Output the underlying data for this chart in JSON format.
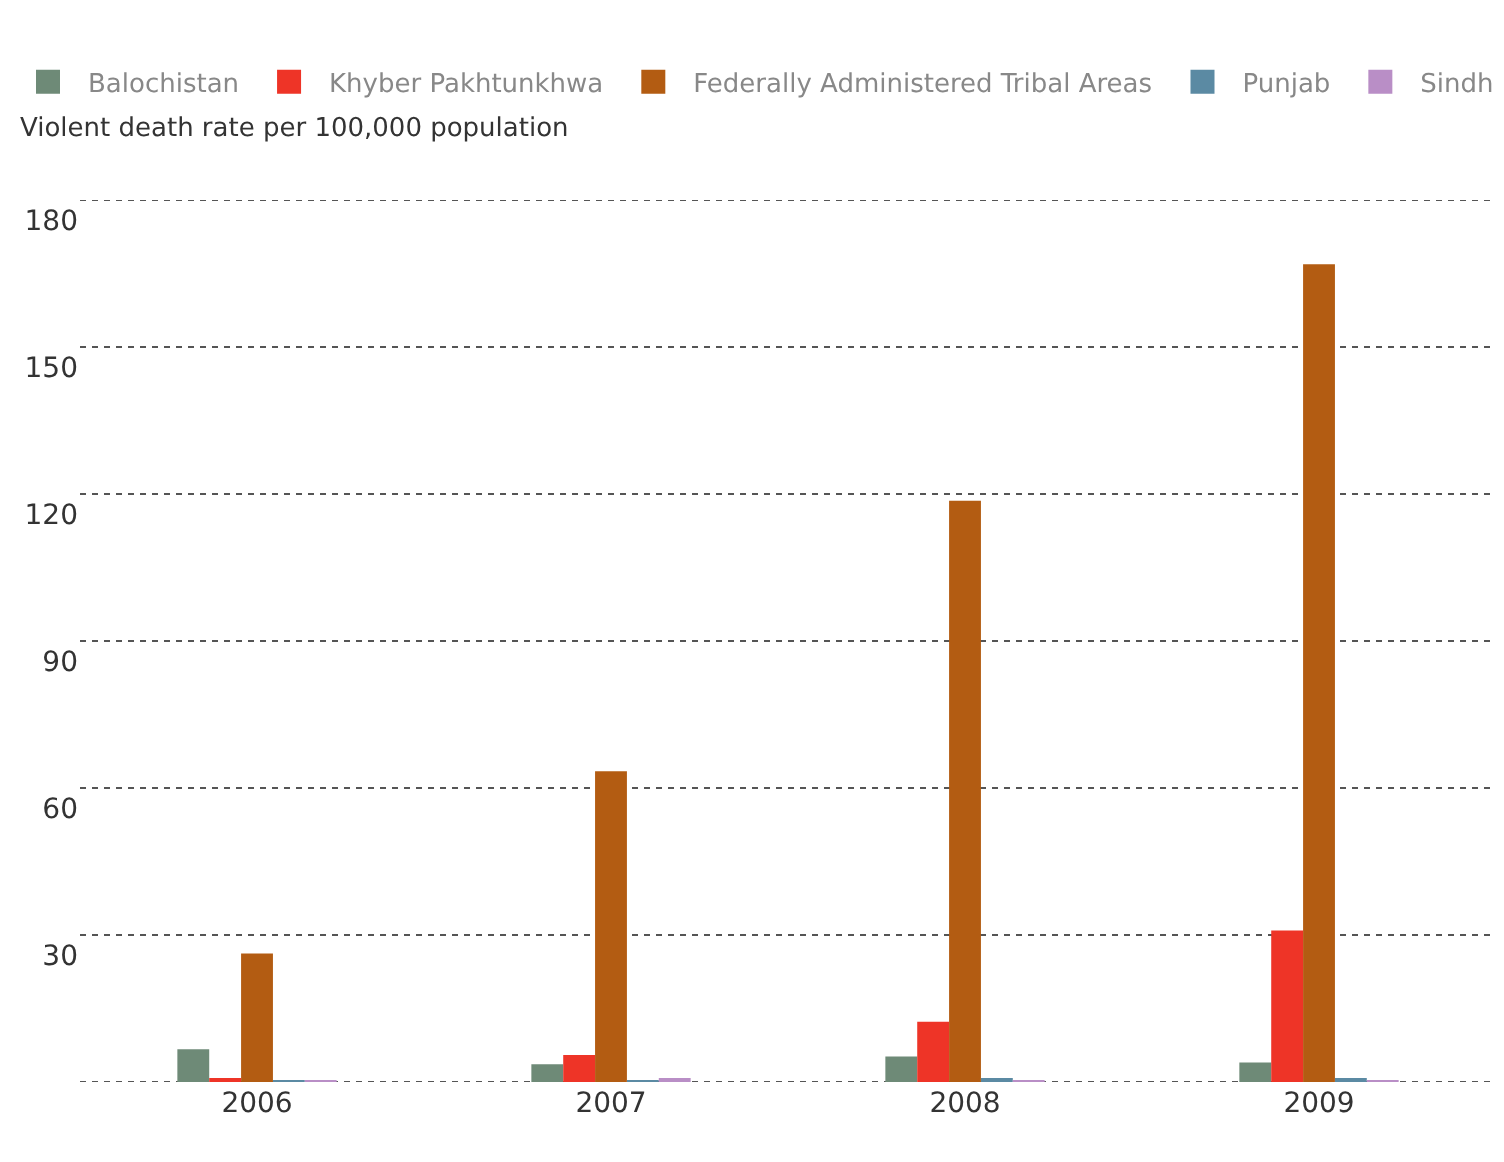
{
  "chart_data": {
    "type": "bar",
    "ylabel": "Violent death rate per 100,000 population",
    "categories": [
      "2006",
      "2007",
      "2008",
      "2009"
    ],
    "series": [
      {
        "name": "Balochistan",
        "color": "#6e8a77",
        "values": [
          6.7,
          3.6,
          5.2,
          4.0
        ]
      },
      {
        "name": "Khyber Pakhtunkhwa",
        "color": "#ee3427",
        "values": [
          0.5,
          5.5,
          12.3,
          30.9
        ]
      },
      {
        "name": "Federally Administered Tribal Areas",
        "color": "#b35c12",
        "values": [
          26.2,
          63.4,
          118.6,
          166.9
        ]
      },
      {
        "name": "Punjab",
        "color": "#5b8aa3",
        "values": [
          0.2,
          0.2,
          0.5,
          0.5
        ]
      },
      {
        "name": "Sindh",
        "color": "#b98ec6",
        "values": [
          0.2,
          0.5,
          0.2,
          0.2
        ]
      }
    ],
    "ylim": [
      0,
      180
    ],
    "yticks": [
      {
        "value": 0,
        "label": null
      },
      30,
      60,
      90,
      120,
      150,
      180
    ],
    "grid": "y",
    "legend": "top"
  }
}
